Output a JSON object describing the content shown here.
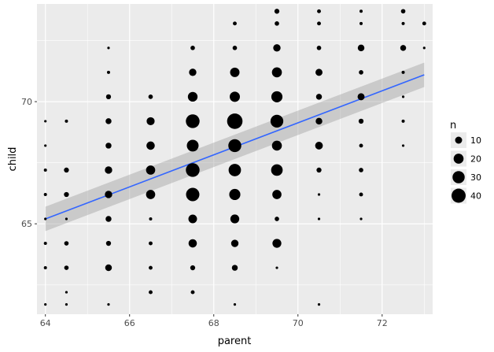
{
  "chart_data": {
    "type": "scatter",
    "xlabel": "parent",
    "ylabel": "child",
    "xlim": [
      63.8,
      73.2
    ],
    "ylim": [
      61.3,
      74.0
    ],
    "x_ticks": [
      64,
      66,
      68,
      70,
      72
    ],
    "y_ticks": [
      65,
      70
    ],
    "grid": true,
    "legend": {
      "title": "n",
      "position": "right",
      "entries": [
        {
          "label": "10",
          "value": 10
        },
        {
          "label": "20",
          "value": 20
        },
        {
          "label": "30",
          "value": 30
        },
        {
          "label": "40",
          "value": 40
        }
      ]
    },
    "points": [
      {
        "x": 64,
        "y": 61.7,
        "n": 1
      },
      {
        "x": 64,
        "y": 62.2,
        "n": 0
      },
      {
        "x": 64,
        "y": 63.2,
        "n": 2
      },
      {
        "x": 64,
        "y": 64.2,
        "n": 2
      },
      {
        "x": 64,
        "y": 65.2,
        "n": 1
      },
      {
        "x": 64,
        "y": 66.2,
        "n": 2
      },
      {
        "x": 64,
        "y": 67.2,
        "n": 2
      },
      {
        "x": 64,
        "y": 68.2,
        "n": 1
      },
      {
        "x": 64,
        "y": 69.2,
        "n": 1
      },
      {
        "x": 64.5,
        "y": 61.7,
        "n": 1
      },
      {
        "x": 64.5,
        "y": 62.2,
        "n": 1
      },
      {
        "x": 64.5,
        "y": 63.2,
        "n": 4
      },
      {
        "x": 64.5,
        "y": 64.2,
        "n": 4
      },
      {
        "x": 64.5,
        "y": 65.2,
        "n": 1
      },
      {
        "x": 64.5,
        "y": 66.2,
        "n": 5
      },
      {
        "x": 64.5,
        "y": 67.2,
        "n": 5
      },
      {
        "x": 64.5,
        "y": 69.2,
        "n": 2
      },
      {
        "x": 65.5,
        "y": 61.7,
        "n": 1
      },
      {
        "x": 65.5,
        "y": 63.2,
        "n": 9
      },
      {
        "x": 65.5,
        "y": 64.2,
        "n": 5
      },
      {
        "x": 65.5,
        "y": 65.2,
        "n": 7
      },
      {
        "x": 65.5,
        "y": 66.2,
        "n": 11
      },
      {
        "x": 65.5,
        "y": 67.2,
        "n": 11
      },
      {
        "x": 65.5,
        "y": 68.2,
        "n": 7
      },
      {
        "x": 65.5,
        "y": 69.2,
        "n": 7
      },
      {
        "x": 65.5,
        "y": 70.2,
        "n": 5
      },
      {
        "x": 65.5,
        "y": 71.2,
        "n": 2
      },
      {
        "x": 65.5,
        "y": 72.2,
        "n": 1
      },
      {
        "x": 66.5,
        "y": 62.2,
        "n": 3
      },
      {
        "x": 66.5,
        "y": 63.2,
        "n": 3
      },
      {
        "x": 66.5,
        "y": 64.2,
        "n": 3
      },
      {
        "x": 66.5,
        "y": 65.2,
        "n": 2
      },
      {
        "x": 66.5,
        "y": 66.2,
        "n": 17
      },
      {
        "x": 66.5,
        "y": 67.2,
        "n": 17
      },
      {
        "x": 66.5,
        "y": 68.2,
        "n": 14
      },
      {
        "x": 66.5,
        "y": 69.2,
        "n": 13
      },
      {
        "x": 66.5,
        "y": 70.2,
        "n": 4
      },
      {
        "x": 67.5,
        "y": 62.2,
        "n": 3
      },
      {
        "x": 67.5,
        "y": 63.2,
        "n": 5
      },
      {
        "x": 67.5,
        "y": 64.2,
        "n": 14
      },
      {
        "x": 67.5,
        "y": 65.2,
        "n": 15
      },
      {
        "x": 67.5,
        "y": 66.2,
        "n": 36
      },
      {
        "x": 67.5,
        "y": 67.2,
        "n": 38
      },
      {
        "x": 67.5,
        "y": 68.2,
        "n": 28
      },
      {
        "x": 67.5,
        "y": 69.2,
        "n": 38
      },
      {
        "x": 67.5,
        "y": 70.2,
        "n": 19
      },
      {
        "x": 67.5,
        "y": 71.2,
        "n": 11
      },
      {
        "x": 67.5,
        "y": 72.2,
        "n": 4
      },
      {
        "x": 68.5,
        "y": 61.7,
        "n": 1
      },
      {
        "x": 68.5,
        "y": 63.2,
        "n": 7
      },
      {
        "x": 68.5,
        "y": 64.2,
        "n": 11
      },
      {
        "x": 68.5,
        "y": 65.2,
        "n": 16
      },
      {
        "x": 68.5,
        "y": 66.2,
        "n": 25
      },
      {
        "x": 68.5,
        "y": 67.2,
        "n": 31
      },
      {
        "x": 68.5,
        "y": 68.2,
        "n": 34
      },
      {
        "x": 68.5,
        "y": 69.2,
        "n": 48
      },
      {
        "x": 68.5,
        "y": 70.2,
        "n": 21
      },
      {
        "x": 68.5,
        "y": 71.2,
        "n": 18
      },
      {
        "x": 68.5,
        "y": 72.2,
        "n": 4
      },
      {
        "x": 68.5,
        "y": 73.2,
        "n": 3
      },
      {
        "x": 69.5,
        "y": 63.2,
        "n": 1
      },
      {
        "x": 69.5,
        "y": 64.2,
        "n": 16
      },
      {
        "x": 69.5,
        "y": 65.2,
        "n": 4
      },
      {
        "x": 69.5,
        "y": 66.2,
        "n": 17
      },
      {
        "x": 69.5,
        "y": 67.2,
        "n": 27
      },
      {
        "x": 69.5,
        "y": 68.2,
        "n": 20
      },
      {
        "x": 69.5,
        "y": 69.2,
        "n": 33
      },
      {
        "x": 69.5,
        "y": 70.2,
        "n": 25
      },
      {
        "x": 69.5,
        "y": 71.2,
        "n": 20
      },
      {
        "x": 69.5,
        "y": 72.2,
        "n": 11
      },
      {
        "x": 69.5,
        "y": 73.2,
        "n": 4
      },
      {
        "x": 69.5,
        "y": 73.7,
        "n": 5
      },
      {
        "x": 70.5,
        "y": 61.7,
        "n": 1
      },
      {
        "x": 70.5,
        "y": 65.2,
        "n": 1
      },
      {
        "x": 70.5,
        "y": 66.2,
        "n": 1
      },
      {
        "x": 70.5,
        "y": 67.2,
        "n": 5
      },
      {
        "x": 70.5,
        "y": 68.2,
        "n": 12
      },
      {
        "x": 70.5,
        "y": 69.2,
        "n": 9
      },
      {
        "x": 70.5,
        "y": 70.2,
        "n": 7
      },
      {
        "x": 70.5,
        "y": 71.2,
        "n": 10
      },
      {
        "x": 70.5,
        "y": 72.2,
        "n": 4
      },
      {
        "x": 70.5,
        "y": 73.2,
        "n": 3
      },
      {
        "x": 70.5,
        "y": 73.7,
        "n": 3
      },
      {
        "x": 71.5,
        "y": 65.2,
        "n": 1
      },
      {
        "x": 71.5,
        "y": 66.2,
        "n": 3
      },
      {
        "x": 71.5,
        "y": 67.2,
        "n": 4
      },
      {
        "x": 71.5,
        "y": 68.2,
        "n": 3
      },
      {
        "x": 71.5,
        "y": 69.2,
        "n": 5
      },
      {
        "x": 71.5,
        "y": 70.2,
        "n": 10
      },
      {
        "x": 71.5,
        "y": 71.2,
        "n": 4
      },
      {
        "x": 71.5,
        "y": 72.2,
        "n": 9
      },
      {
        "x": 71.5,
        "y": 73.2,
        "n": 2
      },
      {
        "x": 71.5,
        "y": 73.7,
        "n": 2
      },
      {
        "x": 72.5,
        "y": 68.2,
        "n": 1
      },
      {
        "x": 72.5,
        "y": 69.2,
        "n": 2
      },
      {
        "x": 72.5,
        "y": 70.2,
        "n": 1
      },
      {
        "x": 72.5,
        "y": 71.2,
        "n": 2
      },
      {
        "x": 72.5,
        "y": 72.2,
        "n": 7
      },
      {
        "x": 72.5,
        "y": 73.2,
        "n": 2
      },
      {
        "x": 72.5,
        "y": 73.7,
        "n": 4
      },
      {
        "x": 73,
        "y": 72.2,
        "n": 1
      },
      {
        "x": 73,
        "y": 73.2,
        "n": 3
      }
    ],
    "trend_line": {
      "method": "linear fit",
      "color": "#3366FF",
      "band_color": "#999999",
      "start": {
        "x": 64,
        "y": 65.2,
        "lower": 64.7,
        "upper": 65.7
      },
      "end": {
        "x": 73,
        "y": 71.1,
        "lower": 70.6,
        "upper": 71.6
      }
    },
    "colors": {
      "panel": "#EBEBEB",
      "grid": "#FFFFFF",
      "points": "#000000"
    }
  }
}
